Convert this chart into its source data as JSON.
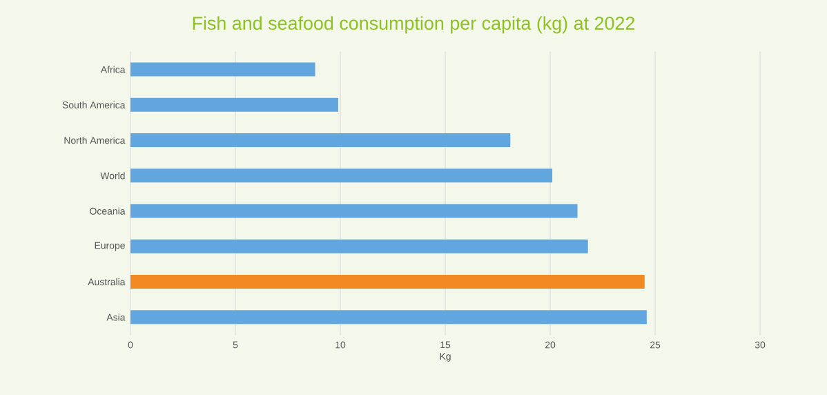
{
  "chart_data": {
    "type": "bar",
    "orientation": "horizontal",
    "title": "Fish and seafood consumption per capita (kg) at 2022",
    "xlabel": "Kg",
    "categories": [
      "Africa",
      "South America",
      "North America",
      "World",
      "Oceania",
      "Europe",
      "Australia",
      "Asia"
    ],
    "values": [
      8.8,
      9.9,
      18.1,
      20.1,
      21.3,
      21.8,
      24.5,
      24.6
    ],
    "colors": [
      "#62a6e0",
      "#62a6e0",
      "#62a6e0",
      "#62a6e0",
      "#62a6e0",
      "#62a6e0",
      "#f28a24",
      "#62a6e0"
    ],
    "xlim": [
      0,
      30
    ],
    "xticks": [
      0,
      5,
      10,
      15,
      20,
      25,
      30
    ],
    "grid": "x"
  }
}
